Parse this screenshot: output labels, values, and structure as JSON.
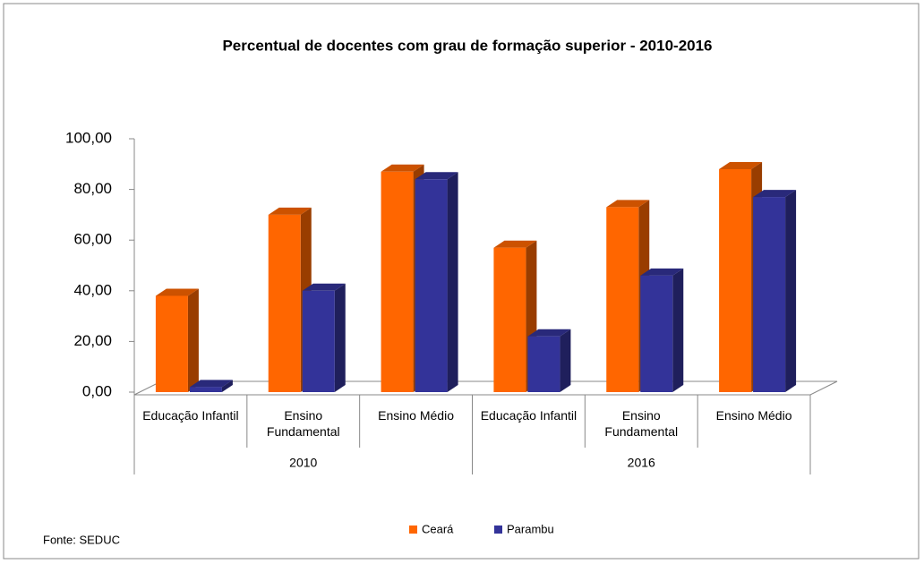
{
  "chart_data": {
    "type": "bar3d",
    "title": "Percentual de docentes com grau de formação superior  - 2010-2016",
    "categories": [
      "Educação Infantil",
      "Ensino Fundamental",
      "Ensino Médio",
      "Educação Infantil",
      "Ensino Fundamental",
      "Ensino Médio"
    ],
    "groups": [
      "2010",
      "2016"
    ],
    "series": [
      {
        "name": "Ceará",
        "color": "#ff6600",
        "values": [
          38,
          70,
          87,
          57,
          73,
          88
        ]
      },
      {
        "name": "Parambu",
        "color": "#333399",
        "values": [
          2,
          40,
          84,
          22,
          46,
          77
        ]
      }
    ],
    "ylim": [
      0,
      100
    ],
    "yticks": [
      {
        "value": 0,
        "label": "0,00"
      },
      {
        "value": 20,
        "label": "20,00"
      },
      {
        "value": 40,
        "label": "40,00"
      },
      {
        "value": 60,
        "label": "60,00"
      },
      {
        "value": 80,
        "label": "80,00"
      },
      {
        "value": 100,
        "label": "100,00"
      }
    ],
    "legend": "bottom",
    "source": "Fonte: SEDUC"
  }
}
